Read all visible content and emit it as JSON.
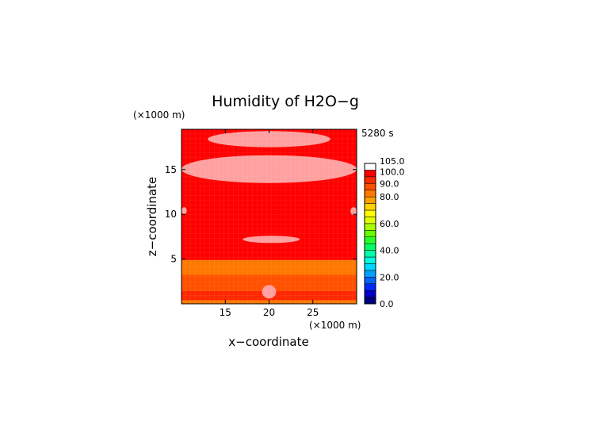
{
  "chart_data": {
    "type": "heatmap",
    "title": "Humidity of H2O−g",
    "time_label": "5280 s",
    "xlabel": "x−coordinate",
    "ylabel": "z−coordinate",
    "x_unit": "(×1000 m)",
    "y_unit": "(×1000 m)",
    "xlim": [
      10,
      30
    ],
    "ylim": [
      0,
      19.5
    ],
    "x_ticks": [
      15,
      20,
      25
    ],
    "y_ticks": [
      5,
      10,
      15
    ],
    "colorbar": {
      "levels": [
        0,
        5,
        10,
        15,
        20,
        25,
        30,
        35,
        40,
        45,
        50,
        55,
        60,
        65,
        70,
        75,
        80,
        85,
        90,
        95,
        100,
        105
      ],
      "labels": [
        "0.0",
        "20.0",
        "40.0",
        "60.0",
        "80.0",
        "90.0",
        "100.0",
        "105.0"
      ],
      "label_values": [
        0,
        20,
        40,
        60,
        80,
        90,
        100,
        105
      ],
      "colors": [
        "#000080",
        "#0000c8",
        "#0028ff",
        "#0064ff",
        "#00a0ff",
        "#00d8ff",
        "#00ffe0",
        "#00ffa8",
        "#00ff64",
        "#28ff28",
        "#64ff00",
        "#a8ff00",
        "#e0ff00",
        "#ffff00",
        "#ffd200",
        "#ffa000",
        "#ff7800",
        "#ff5000",
        "#ff2800",
        "#ff0000",
        "#ffffff"
      ]
    },
    "regions": [
      {
        "name": "background",
        "value": 97
      },
      {
        "name": "upper-band",
        "value": 101,
        "x": [
          13,
          27
        ],
        "z": [
          17.5,
          19.3
        ]
      },
      {
        "name": "mid-upper-band",
        "value": 101,
        "x": [
          10,
          30
        ],
        "z": [
          13.5,
          16.6
        ]
      },
      {
        "name": "mid-band",
        "value": 101,
        "x": [
          17,
          23.5
        ],
        "z": [
          6.8,
          7.6
        ]
      },
      {
        "name": "left-spot",
        "value": 101,
        "x": [
          10,
          10.6
        ],
        "z": [
          10,
          10.8
        ]
      },
      {
        "name": "right-spot",
        "value": 101,
        "x": [
          29.3,
          30
        ],
        "z": [
          9.9,
          10.8
        ]
      },
      {
        "name": "yellow-layer",
        "value": 82,
        "z": [
          3.2,
          4.9
        ]
      },
      {
        "name": "orange-layer",
        "value": 87,
        "z": [
          1.4,
          3.2
        ]
      },
      {
        "name": "red-layer",
        "value": 93,
        "z": [
          0.4,
          1.4
        ]
      },
      {
        "name": "yellow-base",
        "value": 82,
        "z": [
          0,
          0.4
        ]
      },
      {
        "name": "central-blob",
        "value": 101,
        "x": [
          19.2,
          20.8
        ],
        "z": [
          0.6,
          2.1
        ]
      }
    ]
  }
}
